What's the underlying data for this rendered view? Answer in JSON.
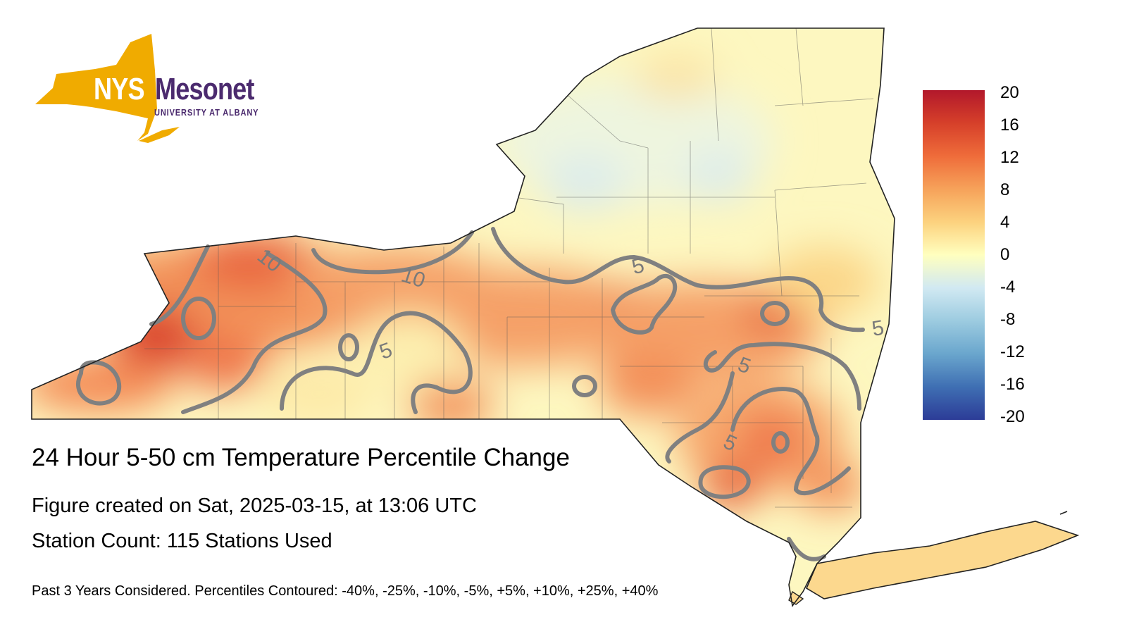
{
  "logo": {
    "nys": "NYS",
    "mesonet": "Mesonet",
    "university": "UNIVERSITY AT ALBANY",
    "colors": {
      "gold": "#f0ab00",
      "purple": "#4b2a6e"
    }
  },
  "title": "24 Hour 5-50 cm Temperature Percentile Change",
  "created": "Figure created on Sat, 2025-03-15, at 13:06 UTC",
  "stations": "Station Count: 115 Stations Used",
  "footnote": "Past 3 Years Considered. Percentiles Contoured: -40%, -25%, -10%, -5%, +5%, +10%, +25%, +40%",
  "colorbar": {
    "ticks": [
      "20",
      "16",
      "12",
      "8",
      "4",
      "0",
      "-4",
      "-8",
      "-12",
      "-16",
      "-20"
    ],
    "max": 20,
    "min": -20,
    "colors": {
      "high": "#b2182b",
      "mid": "#ffffbf",
      "low": "#2c3c97"
    }
  },
  "contour_labels": [
    {
      "text": "10"
    },
    {
      "text": "10"
    },
    {
      "text": "5"
    },
    {
      "text": "5"
    },
    {
      "text": "5"
    },
    {
      "text": "5"
    },
    {
      "text": "5"
    }
  ]
}
